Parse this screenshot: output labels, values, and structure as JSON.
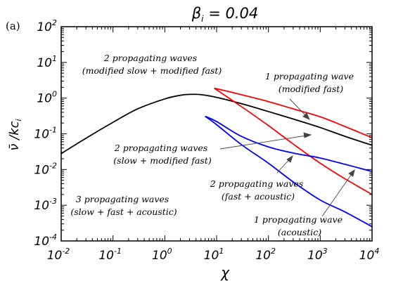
{
  "chart_data": {
    "type": "line",
    "panel_label": "(a)",
    "title": "β_i = 0.04",
    "title_main": "β",
    "title_sub": "i",
    "title_rest": " = 0.04",
    "xlabel": "χ",
    "ylabel_main": "ν̄ /kc",
    "ylabel_sub": "i",
    "x_scale": "log",
    "y_scale": "log",
    "xlim": [
      0.01,
      10000
    ],
    "ylim": [
      0.0001,
      100
    ],
    "x_ticks": [
      {
        "value": 0.01,
        "base": "10",
        "exp": "-2"
      },
      {
        "value": 0.1,
        "base": "10",
        "exp": "-1"
      },
      {
        "value": 1,
        "base": "10",
        "exp": "0"
      },
      {
        "value": 10,
        "base": "10",
        "exp": "1"
      },
      {
        "value": 100,
        "base": "10",
        "exp": "2"
      },
      {
        "value": 1000,
        "base": "10",
        "exp": "3"
      },
      {
        "value": 10000,
        "base": "10",
        "exp": "4"
      }
    ],
    "y_ticks": [
      {
        "value": 0.0001,
        "base": "10",
        "exp": "-4"
      },
      {
        "value": 0.001,
        "base": "10",
        "exp": "-3"
      },
      {
        "value": 0.01,
        "base": "10",
        "exp": "-2"
      },
      {
        "value": 0.1,
        "base": "10",
        "exp": "-1"
      },
      {
        "value": 1,
        "base": "10",
        "exp": "0"
      },
      {
        "value": 10,
        "base": "10",
        "exp": "1"
      },
      {
        "value": 100,
        "base": "10",
        "exp": "2"
      }
    ],
    "grid": false,
    "colors": {
      "black": "#000000",
      "red": "#ff0000",
      "blue": "#0000ff"
    },
    "series": [
      {
        "color": "#000000",
        "x": [
          0.01,
          0.03,
          0.1,
          0.3,
          1,
          2,
          3,
          5,
          10,
          30,
          100,
          300,
          1000,
          3000,
          10000
        ],
        "y": [
          0.028,
          0.075,
          0.21,
          0.5,
          0.95,
          1.2,
          1.27,
          1.25,
          1.05,
          0.7,
          0.42,
          0.26,
          0.15,
          0.085,
          0.048
        ]
      },
      {
        "color": "#ff0000",
        "x": [
          9,
          30,
          100,
          300,
          1000,
          3000,
          10000
        ],
        "y": [
          1.9,
          1.25,
          0.8,
          0.5,
          0.3,
          0.16,
          0.078
        ]
      },
      {
        "color": "#ff0000",
        "x": [
          9,
          30,
          100,
          300,
          1000,
          3000,
          10000
        ],
        "y": [
          1.9,
          0.58,
          0.17,
          0.052,
          0.015,
          0.0055,
          0.002
        ]
      },
      {
        "color": "#0000ff",
        "x": [
          6,
          10,
          30,
          100,
          300,
          1000,
          3000,
          10000
        ],
        "y": [
          0.31,
          0.22,
          0.085,
          0.043,
          0.029,
          0.021,
          0.014,
          0.0088
        ]
      },
      {
        "color": "#0000ff",
        "x": [
          6,
          10,
          30,
          100,
          300,
          1000,
          3000,
          10000
        ],
        "y": [
          0.31,
          0.18,
          0.05,
          0.015,
          0.0045,
          0.0014,
          0.00065,
          0.00025
        ]
      }
    ],
    "annotations": [
      {
        "lines": [
          "2 propagating waves",
          "(modified slow + modified fast)"
        ]
      },
      {
        "lines": [
          "1 propagating wave",
          "(modified fast)"
        ]
      },
      {
        "lines": [
          "2 propagating waves",
          "(slow + modified fast)"
        ]
      },
      {
        "lines": [
          "2 propagating waves",
          "(fast + acoustic)"
        ]
      },
      {
        "lines": [
          "3 propagating waves",
          "(slow + fast + acoustic)"
        ]
      },
      {
        "lines": [
          "1 propagating wave",
          "(acoustic)"
        ]
      }
    ]
  }
}
